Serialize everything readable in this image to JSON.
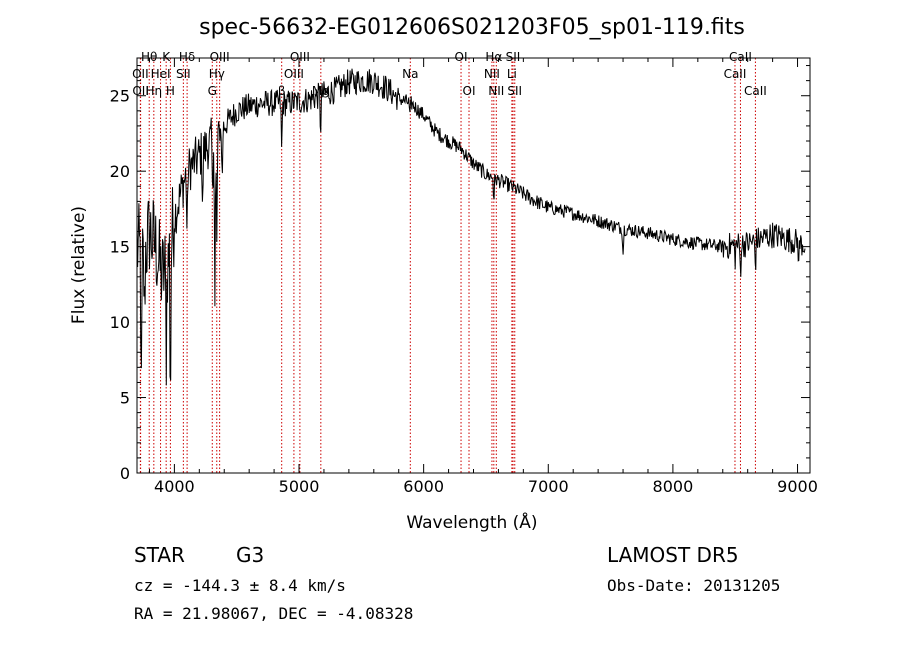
{
  "chart_data": {
    "type": "line",
    "title": "spec-56632-EG012606S021203F05_sp01-119.fits",
    "xlabel": "Wavelength (Å)",
    "ylabel": "Flux (relative)",
    "xlim": [
      3700,
      9100
    ],
    "ylim": [
      0,
      27.5
    ],
    "x_ticks": [
      4000,
      5000,
      6000,
      7000,
      8000,
      9000
    ],
    "y_ticks": [
      0,
      5,
      10,
      15,
      20,
      25
    ],
    "grid": false,
    "series": [
      {
        "continuum": [
          [
            3700,
            15
          ],
          [
            3750,
            14
          ],
          [
            3800,
            16
          ],
          [
            3850,
            15
          ],
          [
            3900,
            13
          ],
          [
            3950,
            14
          ],
          [
            4000,
            17
          ],
          [
            4100,
            20
          ],
          [
            4200,
            21
          ],
          [
            4300,
            22
          ],
          [
            4400,
            23
          ],
          [
            4500,
            24
          ],
          [
            4600,
            24.3
          ],
          [
            4700,
            24.5
          ],
          [
            4800,
            24.5
          ],
          [
            4900,
            24.5
          ],
          [
            5000,
            24.6
          ],
          [
            5100,
            24.8
          ],
          [
            5200,
            25.1
          ],
          [
            5300,
            25.4
          ],
          [
            5400,
            25.9
          ],
          [
            5500,
            26.0
          ],
          [
            5600,
            26.0
          ],
          [
            5700,
            25.5
          ],
          [
            5800,
            24.8
          ],
          [
            5900,
            24.5
          ],
          [
            6000,
            23.7
          ],
          [
            6100,
            22.6
          ],
          [
            6200,
            22.0
          ],
          [
            6300,
            21.5
          ],
          [
            6400,
            20.5
          ],
          [
            6500,
            19.8
          ],
          [
            6600,
            19.4
          ],
          [
            6700,
            19.0
          ],
          [
            6800,
            18.5
          ],
          [
            6900,
            18.0
          ],
          [
            7000,
            17.6
          ],
          [
            7200,
            17.2
          ],
          [
            7400,
            16.7
          ],
          [
            7600,
            16.2
          ],
          [
            7800,
            15.9
          ],
          [
            8000,
            15.5
          ],
          [
            8200,
            15.2
          ],
          [
            8400,
            15.0
          ],
          [
            8600,
            15.2
          ],
          [
            8800,
            15.8
          ],
          [
            9000,
            15.3
          ],
          [
            9100,
            15.0
          ]
        ],
        "absorption_dips": [
          [
            3735,
            4.5
          ],
          [
            3760,
            10.5
          ],
          [
            3934,
            7.5
          ],
          [
            3968,
            4
          ],
          [
            4102,
            15
          ],
          [
            4227,
            18
          ],
          [
            4307,
            17.5
          ],
          [
            4325,
            11
          ],
          [
            4340,
            15
          ],
          [
            4383,
            19
          ],
          [
            4861,
            21
          ],
          [
            5173,
            22.5
          ],
          [
            5890,
            23.5
          ],
          [
            6563,
            18
          ],
          [
            7600,
            14.5
          ],
          [
            8498,
            14
          ],
          [
            8542,
            13
          ],
          [
            8662,
            13.5
          ],
          [
            9010,
            14
          ]
        ]
      }
    ],
    "line_markers": [
      {
        "label": "Hθ",
        "wavelength": 3798,
        "row": 0
      },
      {
        "label": "K",
        "wavelength": 3934,
        "row": 0
      },
      {
        "label": "Hδ",
        "wavelength": 4102,
        "row": 0
      },
      {
        "label": "OIII",
        "wavelength": 4363,
        "row": 0
      },
      {
        "label": "OIII",
        "wavelength": 5007,
        "row": 0
      },
      {
        "label": "OI",
        "wavelength": 6300,
        "row": 0
      },
      {
        "label": "Hα",
        "wavelength": 6563,
        "row": 0
      },
      {
        "label": "SII",
        "wavelength": 6717,
        "row": 0
      },
      {
        "label": "CaII",
        "wavelength": 8542,
        "row": 0
      },
      {
        "label": "OII",
        "wavelength": 3727,
        "row": 1
      },
      {
        "label": "HeI",
        "wavelength": 3889,
        "row": 1
      },
      {
        "label": "SII",
        "wavelength": 4072,
        "row": 1
      },
      {
        "label": "Hγ",
        "wavelength": 4340,
        "row": 1
      },
      {
        "label": "OIII",
        "wavelength": 4959,
        "row": 1
      },
      {
        "label": "Na",
        "wavelength": 5893,
        "row": 1
      },
      {
        "label": "NII",
        "wavelength": 6548,
        "row": 1
      },
      {
        "label": "Li",
        "wavelength": 6708,
        "row": 1
      },
      {
        "label": "CaII",
        "wavelength": 8498,
        "row": 1
      },
      {
        "label": "OII",
        "wavelength": 3729,
        "row": 2
      },
      {
        "label": "Hη",
        "wavelength": 3835,
        "row": 2
      },
      {
        "label": "H",
        "wavelength": 3968,
        "row": 2
      },
      {
        "label": "G",
        "wavelength": 4304,
        "row": 2
      },
      {
        "label": "β",
        "wavelength": 4861,
        "row": 2
      },
      {
        "label": "Mg",
        "wavelength": 5175,
        "row": 2
      },
      {
        "label": "OI",
        "wavelength": 6364,
        "row": 2
      },
      {
        "label": "NII",
        "wavelength": 6583,
        "row": 2
      },
      {
        "label": "SII",
        "wavelength": 6731,
        "row": 2
      },
      {
        "label": "CaII",
        "wavelength": 8662,
        "row": 2
      }
    ],
    "marker_color": "#cc0000"
  },
  "footer": {
    "class_label": "STAR",
    "subclass_label": "G3",
    "redshift_text": "cz = -144.3 ± 8.4 km/s",
    "coords_text": "RA =  21.98067, DEC =  -4.08328",
    "survey_text": "LAMOST DR5",
    "obs_date_text": "Obs-Date: 20131205"
  }
}
